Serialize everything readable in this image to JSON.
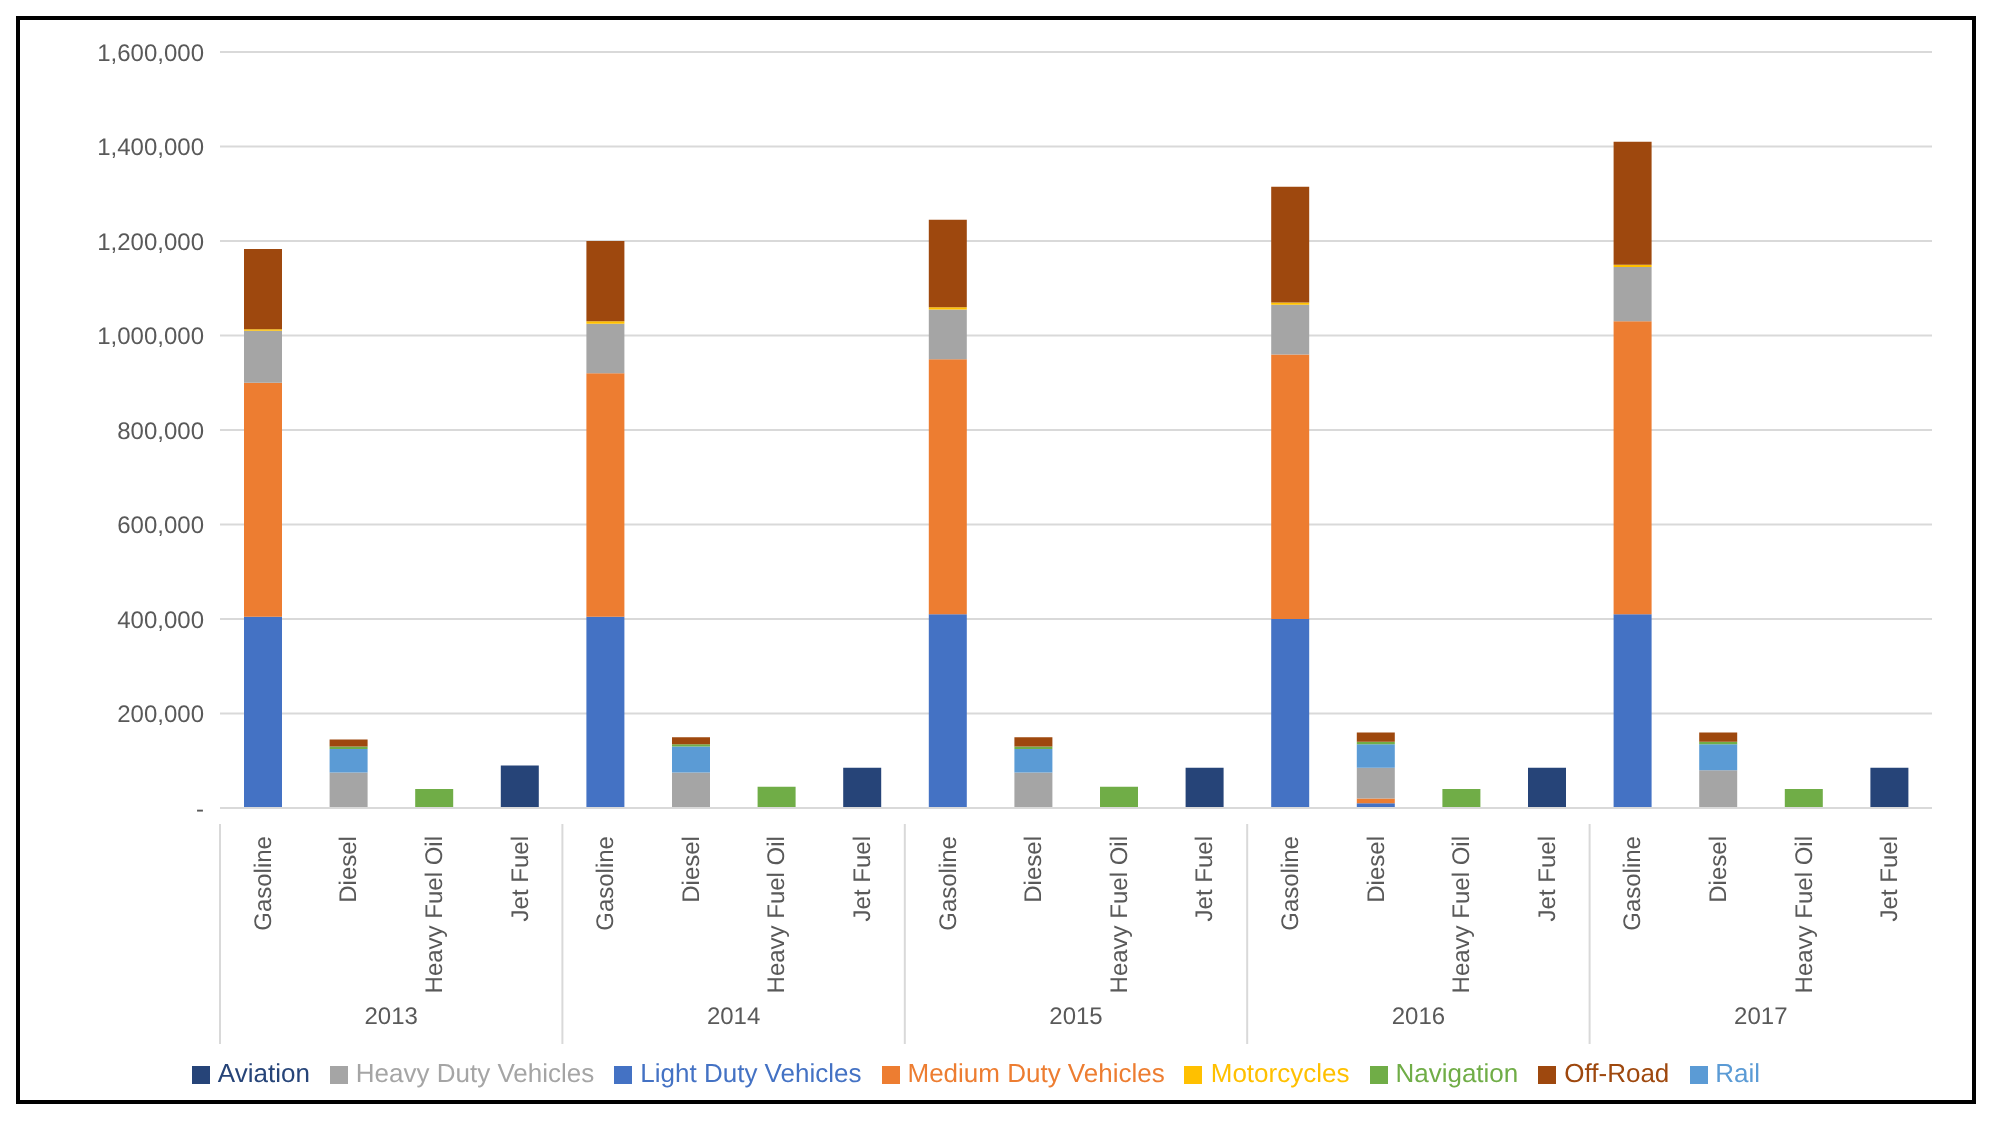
{
  "chart_data": {
    "type": "bar",
    "stacked": true,
    "categories": [
      "Gasoline",
      "Diesel",
      "Heavy Fuel Oil",
      "Jet Fuel",
      "Gasoline",
      "Diesel",
      "Heavy Fuel Oil",
      "Jet Fuel",
      "Gasoline",
      "Diesel",
      "Heavy Fuel Oil",
      "Jet Fuel",
      "Gasoline",
      "Diesel",
      "Heavy Fuel Oil",
      "Jet Fuel",
      "Gasoline",
      "Diesel",
      "Heavy Fuel Oil",
      "Jet Fuel"
    ],
    "annotations": [
      "2013",
      "2014",
      "2015",
      "2016",
      "2017"
    ],
    "series": [
      {
        "name": "Light Duty Vehicles",
        "color": "#4472c4",
        "values": [
          405000,
          null,
          null,
          null,
          405000,
          null,
          null,
          null,
          410000,
          null,
          null,
          null,
          400000,
          10000,
          null,
          null,
          410000,
          null,
          null,
          null
        ]
      },
      {
        "name": "Medium Duty Vehicles",
        "color": "#ed7d31",
        "values": [
          495000,
          null,
          null,
          null,
          515000,
          null,
          null,
          null,
          540000,
          null,
          null,
          null,
          560000,
          10000,
          null,
          null,
          620000,
          null,
          null,
          null
        ]
      },
      {
        "name": "Heavy Duty Vehicles",
        "color": "#a5a5a5",
        "values": [
          110000,
          75000,
          null,
          null,
          105000,
          75000,
          null,
          null,
          105000,
          75000,
          null,
          null,
          105000,
          65000,
          null,
          null,
          115000,
          80000,
          null,
          null
        ]
      },
      {
        "name": "Motorcycles",
        "color": "#ffc000",
        "values": [
          3000,
          null,
          null,
          null,
          5000,
          null,
          null,
          null,
          5000,
          null,
          null,
          null,
          5000,
          null,
          null,
          null,
          5000,
          null,
          null,
          null
        ]
      },
      {
        "name": "Rail",
        "color": "#5b9bd5",
        "values": [
          null,
          50000,
          null,
          null,
          null,
          55000,
          null,
          null,
          null,
          50000,
          null,
          null,
          null,
          50000,
          null,
          null,
          null,
          55000,
          null,
          null
        ]
      },
      {
        "name": "Navigation",
        "color": "#70ad47",
        "values": [
          null,
          5000,
          40000,
          null,
          null,
          5000,
          45000,
          null,
          null,
          5000,
          45000,
          null,
          null,
          5000,
          40000,
          null,
          null,
          5000,
          40000,
          null
        ]
      },
      {
        "name": "Aviation",
        "color": "#264478",
        "values": [
          null,
          null,
          null,
          90000,
          null,
          null,
          null,
          85000,
          null,
          null,
          null,
          85000,
          null,
          null,
          null,
          85000,
          null,
          null,
          null,
          85000
        ]
      },
      {
        "name": "Off-Road",
        "color": "#9e480e",
        "values": [
          170000,
          15000,
          null,
          null,
          170000,
          15000,
          null,
          null,
          185000,
          20000,
          null,
          null,
          245000,
          20000,
          null,
          null,
          260000,
          20000,
          null,
          null
        ]
      }
    ],
    "ylim": [
      0,
      1600000
    ],
    "yticks": [
      {
        "value": 0,
        "label": "-"
      },
      {
        "value": 200000,
        "label": "200,000"
      },
      {
        "value": 400000,
        "label": "400,000"
      },
      {
        "value": 600000,
        "label": "600,000"
      },
      {
        "value": 800000,
        "label": "800,000"
      },
      {
        "value": 1000000,
        "label": "1,000,000"
      },
      {
        "value": 1200000,
        "label": "1,200,000"
      },
      {
        "value": 1400000,
        "label": "1,400,000"
      },
      {
        "value": 1600000,
        "label": "1,600,000"
      }
    ],
    "grid": "y",
    "legend": "bottom"
  }
}
